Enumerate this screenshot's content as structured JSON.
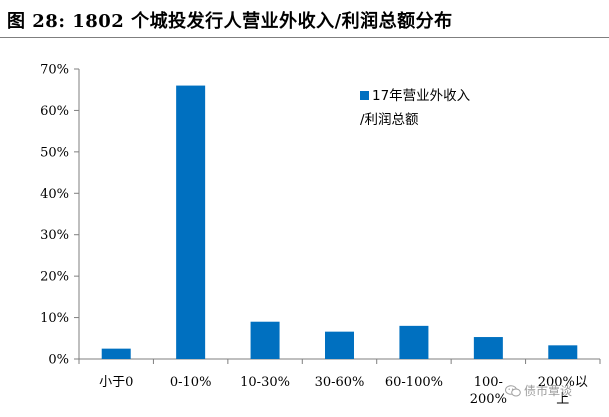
{
  "title": "图 28:  1802 个城投发行人营业外收入/利润总额分布",
  "watermark": "债市覃谈",
  "colors": {
    "bar": "#0070C0",
    "axis": "#7f7f7f",
    "title_rule": "#7f7f7f"
  },
  "chart_data": {
    "type": "bar",
    "categories": [
      "小于0",
      "0-10%",
      "10-30%",
      "30-60%",
      "60-100%",
      "100-\n200%",
      "200%以\n上"
    ],
    "series": [
      {
        "name": "17年营业外收入\n/利润总额",
        "values": [
          0.025,
          0.66,
          0.09,
          0.066,
          0.08,
          0.053,
          0.033
        ]
      }
    ],
    "y_ticks": [
      "0%",
      "10%",
      "20%",
      "30%",
      "40%",
      "50%",
      "60%",
      "70%"
    ],
    "ylim": [
      0,
      0.7
    ],
    "grid": false,
    "legend_position": "top-right"
  }
}
